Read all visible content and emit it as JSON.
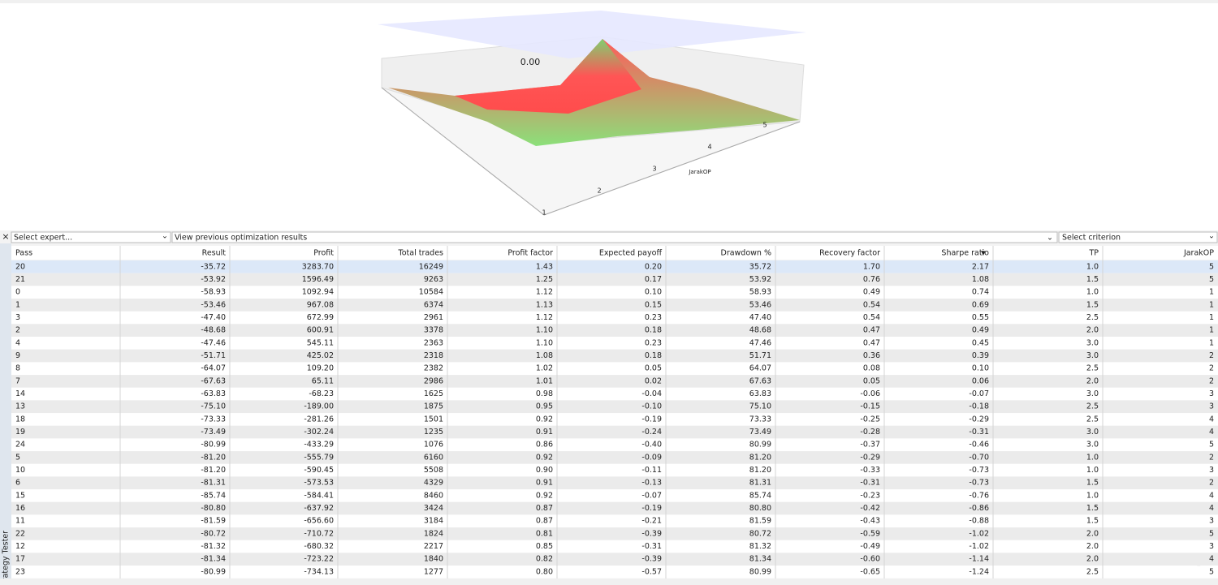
{
  "panel_label": "Strategy Tester",
  "chart3d": {
    "value_label": "0.00",
    "axis_label": "JarakOP",
    "axis_ticks": [
      "1",
      "2",
      "3",
      "4",
      "5"
    ]
  },
  "toolbar": {
    "expert": "Select expert...",
    "results": "View previous optimization results",
    "criterion": "Select criterion"
  },
  "table": {
    "columns": [
      "Pass",
      "Result",
      "Profit",
      "Total trades",
      "Profit factor",
      "Expected payoff",
      "Drawdown %",
      "Recovery factor",
      "Sharpe ratio",
      "TP",
      "JarakOP"
    ],
    "rows": [
      [
        "20",
        "-35.72",
        "3283.70",
        "16249",
        "1.43",
        "0.20",
        "35.72",
        "1.70",
        "2.17",
        "1.0",
        "5"
      ],
      [
        "21",
        "-53.92",
        "1596.49",
        "9263",
        "1.25",
        "0.17",
        "53.92",
        "0.76",
        "1.08",
        "1.5",
        "5"
      ],
      [
        "0",
        "-58.93",
        "1092.94",
        "10584",
        "1.12",
        "0.10",
        "58.93",
        "0.49",
        "0.74",
        "1.0",
        "1"
      ],
      [
        "1",
        "-53.46",
        "967.08",
        "6374",
        "1.13",
        "0.15",
        "53.46",
        "0.54",
        "0.69",
        "1.5",
        "1"
      ],
      [
        "3",
        "-47.40",
        "672.99",
        "2961",
        "1.12",
        "0.23",
        "47.40",
        "0.54",
        "0.55",
        "2.5",
        "1"
      ],
      [
        "2",
        "-48.68",
        "600.91",
        "3378",
        "1.10",
        "0.18",
        "48.68",
        "0.47",
        "0.49",
        "2.0",
        "1"
      ],
      [
        "4",
        "-47.46",
        "545.11",
        "2363",
        "1.10",
        "0.23",
        "47.46",
        "0.47",
        "0.45",
        "3.0",
        "1"
      ],
      [
        "9",
        "-51.71",
        "425.02",
        "2318",
        "1.08",
        "0.18",
        "51.71",
        "0.36",
        "0.39",
        "3.0",
        "2"
      ],
      [
        "8",
        "-64.07",
        "109.20",
        "2382",
        "1.02",
        "0.05",
        "64.07",
        "0.08",
        "0.10",
        "2.5",
        "2"
      ],
      [
        "7",
        "-67.63",
        "65.11",
        "2986",
        "1.01",
        "0.02",
        "67.63",
        "0.05",
        "0.06",
        "2.0",
        "2"
      ],
      [
        "14",
        "-63.83",
        "-68.23",
        "1625",
        "0.98",
        "-0.04",
        "63.83",
        "-0.06",
        "-0.07",
        "3.0",
        "3"
      ],
      [
        "13",
        "-75.10",
        "-189.00",
        "1875",
        "0.95",
        "-0.10",
        "75.10",
        "-0.15",
        "-0.18",
        "2.5",
        "3"
      ],
      [
        "18",
        "-73.33",
        "-281.26",
        "1501",
        "0.92",
        "-0.19",
        "73.33",
        "-0.25",
        "-0.29",
        "2.5",
        "4"
      ],
      [
        "19",
        "-73.49",
        "-302.24",
        "1235",
        "0.91",
        "-0.24",
        "73.49",
        "-0.28",
        "-0.31",
        "3.0",
        "4"
      ],
      [
        "24",
        "-80.99",
        "-433.29",
        "1076",
        "0.86",
        "-0.40",
        "80.99",
        "-0.37",
        "-0.46",
        "3.0",
        "5"
      ],
      [
        "5",
        "-81.20",
        "-555.79",
        "6160",
        "0.92",
        "-0.09",
        "81.20",
        "-0.29",
        "-0.70",
        "1.0",
        "2"
      ],
      [
        "10",
        "-81.20",
        "-590.45",
        "5508",
        "0.90",
        "-0.11",
        "81.20",
        "-0.33",
        "-0.73",
        "1.0",
        "3"
      ],
      [
        "6",
        "-81.31",
        "-573.53",
        "4329",
        "0.91",
        "-0.13",
        "81.31",
        "-0.31",
        "-0.73",
        "1.5",
        "2"
      ],
      [
        "15",
        "-85.74",
        "-584.41",
        "8460",
        "0.92",
        "-0.07",
        "85.74",
        "-0.23",
        "-0.76",
        "1.0",
        "4"
      ],
      [
        "16",
        "-80.80",
        "-637.92",
        "3424",
        "0.87",
        "-0.19",
        "80.80",
        "-0.42",
        "-0.86",
        "1.5",
        "4"
      ],
      [
        "11",
        "-81.59",
        "-656.60",
        "3184",
        "0.87",
        "-0.21",
        "81.59",
        "-0.43",
        "-0.88",
        "1.5",
        "3"
      ],
      [
        "22",
        "-80.72",
        "-710.72",
        "1824",
        "0.81",
        "-0.39",
        "80.72",
        "-0.59",
        "-1.02",
        "2.0",
        "5"
      ],
      [
        "12",
        "-81.32",
        "-680.32",
        "2217",
        "0.85",
        "-0.31",
        "81.32",
        "-0.49",
        "-1.02",
        "2.0",
        "3"
      ],
      [
        "17",
        "-81.34",
        "-723.22",
        "1840",
        "0.82",
        "-0.39",
        "81.34",
        "-0.60",
        "-1.14",
        "2.0",
        "4"
      ],
      [
        "23",
        "-80.99",
        "-734.13",
        "1277",
        "0.80",
        "-0.57",
        "80.99",
        "-0.65",
        "-1.24",
        "2.5",
        "5"
      ]
    ]
  }
}
